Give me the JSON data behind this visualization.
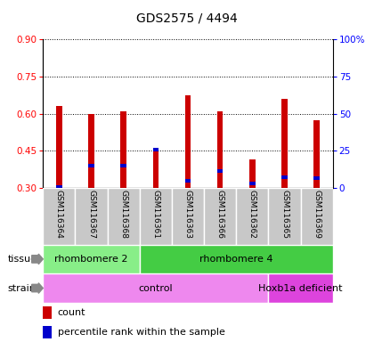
{
  "title": "GDS2575 / 4494",
  "samples": [
    "GSM116364",
    "GSM116367",
    "GSM116368",
    "GSM116361",
    "GSM116363",
    "GSM116366",
    "GSM116362",
    "GSM116365",
    "GSM116369"
  ],
  "count_values": [
    0.63,
    0.6,
    0.61,
    0.46,
    0.675,
    0.608,
    0.415,
    0.66,
    0.575
  ],
  "percentile_values": [
    0.305,
    0.39,
    0.39,
    0.455,
    0.33,
    0.37,
    0.32,
    0.345,
    0.34
  ],
  "y_min": 0.3,
  "y_max": 0.9,
  "y_ticks": [
    0.3,
    0.45,
    0.6,
    0.75,
    0.9
  ],
  "y2_ticks": [
    0,
    25,
    50,
    75,
    100
  ],
  "bar_color": "#cc0000",
  "percentile_color": "#0000cc",
  "bg_gray": "#c8c8c8",
  "tissue_groups": [
    {
      "label": "rhombomere 2",
      "start": 0,
      "end": 3,
      "color": "#88ee88"
    },
    {
      "label": "rhombomere 4",
      "start": 3,
      "end": 9,
      "color": "#44cc44"
    }
  ],
  "strain_groups": [
    {
      "label": "control",
      "start": 0,
      "end": 7,
      "color": "#ee88ee"
    },
    {
      "label": "Hoxb1a deficient",
      "start": 7,
      "end": 9,
      "color": "#dd44dd"
    }
  ],
  "legend_count_label": "count",
  "legend_percentile_label": "percentile rank within the sample",
  "tissue_label": "tissue",
  "strain_label": "strain",
  "bar_width": 0.18,
  "blue_bar_height": 0.015
}
